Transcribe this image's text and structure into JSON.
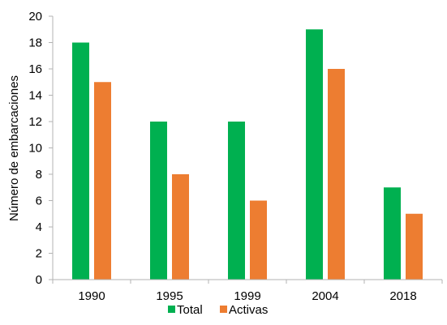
{
  "chart_data": {
    "type": "bar",
    "title": "",
    "xlabel": "",
    "ylabel": "Número de embarcaciones",
    "categories": [
      "1990",
      "1995",
      "1999",
      "2004",
      "2018"
    ],
    "series": [
      {
        "name": "Total",
        "color": "#00b050",
        "values": [
          18,
          12,
          12,
          19,
          7
        ]
      },
      {
        "name": "Activas",
        "color": "#ed7d31",
        "values": [
          15,
          8,
          6,
          16,
          5
        ]
      }
    ],
    "ylim": [
      0,
      20
    ],
    "yticks": [
      0,
      2,
      4,
      6,
      8,
      10,
      12,
      14,
      16,
      18,
      20
    ],
    "grid": false,
    "legend_position": "bottom"
  }
}
